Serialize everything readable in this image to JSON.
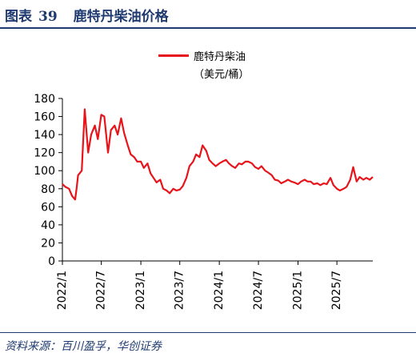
{
  "header": {
    "figure_label": "图表",
    "figure_number": "39",
    "title": "鹿特丹柴油价格"
  },
  "source": "资料来源：百川盈孚，华创证券",
  "colors": {
    "series": "#e8141b",
    "title": "#1f3a70",
    "axis": "#000000"
  },
  "chart_data": {
    "type": "line",
    "title": "鹿特丹柴油价格",
    "xlabel": "",
    "ylabel": "",
    "unit": "（美元/桶）",
    "ylim": [
      0,
      180
    ],
    "yticks": [
      0,
      20,
      40,
      60,
      80,
      100,
      120,
      140,
      160,
      180
    ],
    "xlim": [
      "2022-01-01",
      "2025-12-15"
    ],
    "xticks": [
      "2022/1",
      "2022/7",
      "2023/1",
      "2023/7",
      "2024/1",
      "2024/7",
      "2025/1",
      "2025/7"
    ],
    "grid": false,
    "legend_position": "top-center",
    "series": [
      {
        "name": "鹿特丹柴油",
        "x": [
          "2022-01-01",
          "2022-01-15",
          "2022-02-01",
          "2022-02-15",
          "2022-03-01",
          "2022-03-08",
          "2022-03-15",
          "2022-04-01",
          "2022-04-15",
          "2022-05-01",
          "2022-05-15",
          "2022-06-01",
          "2022-06-15",
          "2022-07-01",
          "2022-07-15",
          "2022-08-01",
          "2022-08-15",
          "2022-09-01",
          "2022-09-15",
          "2022-10-01",
          "2022-10-15",
          "2022-11-01",
          "2022-11-15",
          "2022-12-01",
          "2022-12-15",
          "2023-01-01",
          "2023-01-15",
          "2023-02-01",
          "2023-02-15",
          "2023-03-01",
          "2023-03-15",
          "2023-04-01",
          "2023-04-15",
          "2023-05-01",
          "2023-05-15",
          "2023-06-01",
          "2023-06-15",
          "2023-07-01",
          "2023-07-15",
          "2023-08-01",
          "2023-08-15",
          "2023-09-01",
          "2023-09-15",
          "2023-10-01",
          "2023-10-15",
          "2023-11-01",
          "2023-11-15",
          "2023-12-01",
          "2023-12-15",
          "2024-01-01",
          "2024-01-15",
          "2024-02-01",
          "2024-02-15",
          "2024-03-01",
          "2024-03-15",
          "2024-04-01",
          "2024-04-15",
          "2024-05-01",
          "2024-05-15",
          "2024-06-01",
          "2024-06-15",
          "2024-07-01",
          "2024-07-15",
          "2024-08-01",
          "2024-08-15",
          "2024-09-01",
          "2024-09-15",
          "2024-10-01",
          "2024-10-15",
          "2024-11-01",
          "2024-11-15",
          "2024-12-01",
          "2024-12-15",
          "2025-01-01",
          "2025-01-15",
          "2025-02-01",
          "2025-02-15",
          "2025-03-01",
          "2025-03-15",
          "2025-04-01",
          "2025-04-15",
          "2025-05-01",
          "2025-05-15",
          "2025-06-01",
          "2025-06-15",
          "2025-07-01",
          "2025-07-15",
          "2025-08-01",
          "2025-08-15",
          "2025-09-01",
          "2025-09-15",
          "2025-10-01",
          "2025-10-15",
          "2025-11-01",
          "2025-11-15",
          "2025-12-01",
          "2025-12-15"
        ],
        "values": [
          85,
          82,
          80,
          72,
          68,
          80,
          95,
          100,
          168,
          120,
          140,
          150,
          135,
          162,
          160,
          120,
          145,
          150,
          140,
          158,
          142,
          128,
          118,
          115,
          110,
          110,
          103,
          108,
          97,
          92,
          87,
          90,
          80,
          78,
          75,
          80,
          78,
          79,
          83,
          92,
          105,
          110,
          118,
          115,
          128,
          122,
          112,
          108,
          105,
          108,
          110,
          112,
          108,
          105,
          103,
          108,
          107,
          110,
          110,
          108,
          104,
          102,
          105,
          100,
          98,
          95,
          90,
          89,
          86,
          88,
          90,
          88,
          87,
          85,
          88,
          90,
          88,
          88,
          85,
          86,
          84,
          86,
          85,
          92,
          84,
          80,
          78,
          80,
          82,
          90,
          104,
          88,
          93,
          90,
          92,
          90,
          93
        ]
      }
    ]
  }
}
